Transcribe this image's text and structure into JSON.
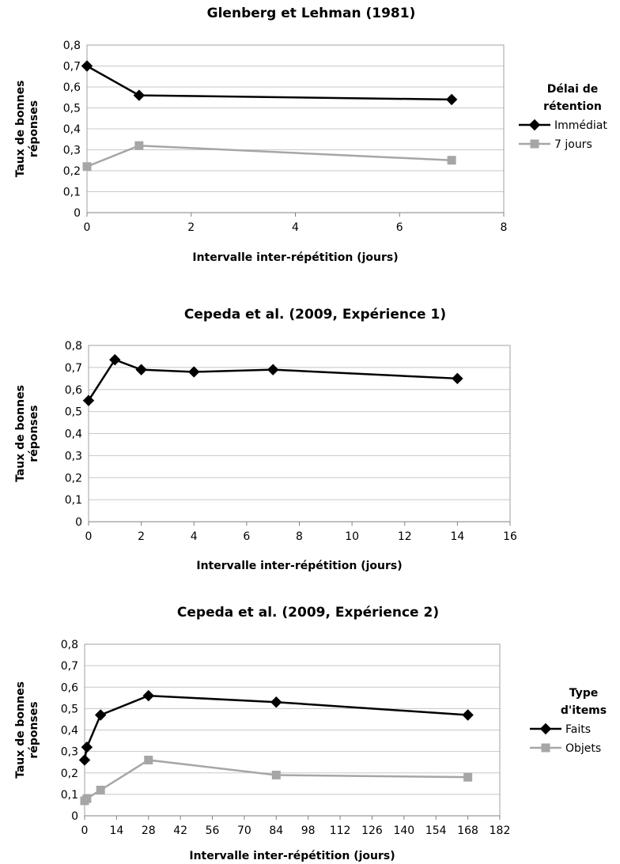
{
  "chart_data": [
    {
      "type": "line",
      "title": "Glenberg et Lehman (1981)",
      "xlabel": "Intervalle inter-répétition (jours)",
      "ylabel_lines": [
        "Taux de bonnes",
        "réponses"
      ],
      "xlim": [
        0,
        8
      ],
      "xticks": [
        0,
        2,
        4,
        6,
        8
      ],
      "ylim": [
        0,
        0.8
      ],
      "yticks": [
        "0",
        "0,1",
        "0,2",
        "0,3",
        "0,4",
        "0,5",
        "0,6",
        "0,7",
        "0,8"
      ],
      "grid": true,
      "legend_title_lines": [
        "Délai de",
        "rétention"
      ],
      "legend_position": "right",
      "series": [
        {
          "name": "Immédiat",
          "color": "#000000",
          "marker": "diamond",
          "x": [
            0,
            1,
            7
          ],
          "y": [
            0.7,
            0.56,
            0.54
          ]
        },
        {
          "name": "7 jours",
          "color": "#a6a6a6",
          "marker": "square",
          "x": [
            0,
            1,
            7
          ],
          "y": [
            0.22,
            0.32,
            0.25
          ]
        }
      ]
    },
    {
      "type": "line",
      "title": "Cepeda et al. (2009, Expérience 1)",
      "xlabel": "Intervalle inter-répétition (jours)",
      "ylabel_lines": [
        "Taux de bonnes",
        "réponses"
      ],
      "xlim": [
        0,
        16
      ],
      "xticks": [
        0,
        2,
        4,
        6,
        8,
        10,
        12,
        14,
        16
      ],
      "ylim": [
        0,
        0.8
      ],
      "yticks": [
        "0",
        "0,1",
        "0,2",
        "0,3",
        "0,4",
        "0,5",
        "0,6",
        "0,7",
        "0,8"
      ],
      "grid": true,
      "series": [
        {
          "color": "#000000",
          "marker": "diamond",
          "x": [
            0,
            1,
            2,
            4,
            7,
            14
          ],
          "y": [
            0.55,
            0.735,
            0.69,
            0.68,
            0.69,
            0.65
          ]
        }
      ]
    },
    {
      "type": "line",
      "title": "Cepeda et al. (2009, Expérience 2)",
      "xlabel": "Intervalle inter-répétition (jours)",
      "ylabel_lines": [
        "Taux de bonnes",
        "réponses"
      ],
      "xlim": [
        0,
        182
      ],
      "xticks": [
        0,
        14,
        28,
        42,
        56,
        70,
        84,
        98,
        112,
        126,
        140,
        154,
        168,
        182
      ],
      "ylim": [
        0,
        0.8
      ],
      "yticks": [
        "0",
        "0,1",
        "0,2",
        "0,3",
        "0,4",
        "0,5",
        "0,6",
        "0,7",
        "0,8"
      ],
      "grid": true,
      "legend_title_lines": [
        "Type",
        "d'items"
      ],
      "legend_position": "right",
      "series": [
        {
          "name": "Faits",
          "color": "#000000",
          "marker": "diamond",
          "x": [
            0,
            1,
            7,
            28,
            84,
            168
          ],
          "y": [
            0.26,
            0.32,
            0.47,
            0.56,
            0.53,
            0.47
          ]
        },
        {
          "name": "Objets",
          "color": "#a6a6a6",
          "marker": "square",
          "x": [
            0,
            1,
            7,
            28,
            84,
            168
          ],
          "y": [
            0.07,
            0.08,
            0.12,
            0.26,
            0.19,
            0.18
          ]
        }
      ]
    }
  ]
}
